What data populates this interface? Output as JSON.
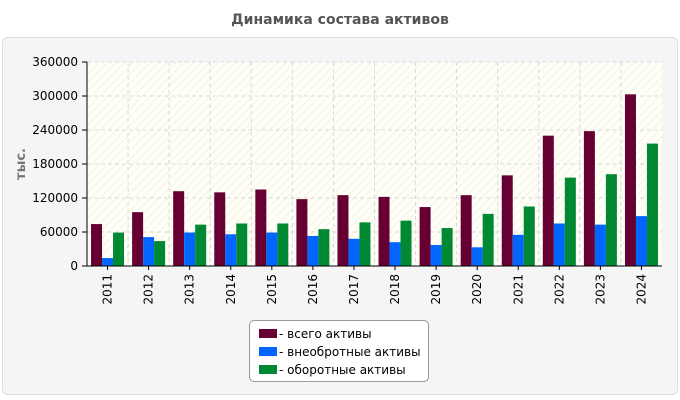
{
  "chart_data": {
    "type": "bar",
    "title": "Динамика состава активов",
    "xlabel": "",
    "ylabel": "тыс.",
    "ylim": [
      0,
      360000
    ],
    "yticks": [
      0,
      60000,
      120000,
      180000,
      240000,
      300000,
      360000
    ],
    "categories": [
      "2011",
      "2012",
      "2013",
      "2014",
      "2015",
      "2016",
      "2017",
      "2018",
      "2019",
      "2020",
      "2021",
      "2022",
      "2023",
      "2024"
    ],
    "series": [
      {
        "name": "всего активы",
        "color": "#660033",
        "values": [
          74000,
          95000,
          132000,
          130000,
          135000,
          118000,
          125000,
          122000,
          104000,
          125000,
          160000,
          230000,
          238000,
          303000
        ]
      },
      {
        "name": "внеобротные активы",
        "color": "#0066ff",
        "values": [
          14000,
          51000,
          59000,
          56000,
          59000,
          53000,
          48000,
          42000,
          37000,
          33000,
          55000,
          75000,
          73000,
          88000
        ]
      },
      {
        "name": "оборотные активы",
        "color": "#008833",
        "values": [
          59000,
          44000,
          73000,
          75000,
          75000,
          65000,
          77000,
          80000,
          67000,
          92000,
          105000,
          156000,
          162000,
          216000
        ]
      }
    ],
    "grid": true,
    "legend_position": "bottom-center"
  }
}
